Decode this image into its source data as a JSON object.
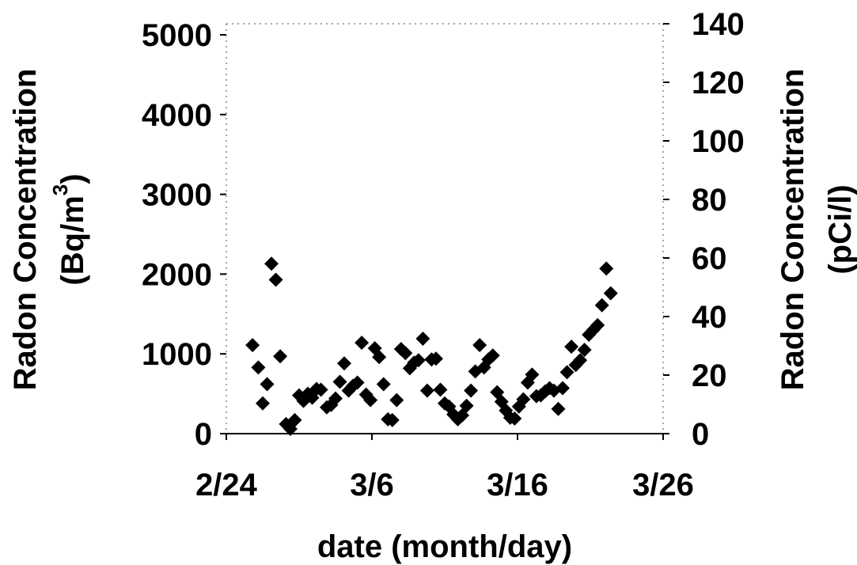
{
  "chart_data": {
    "type": "scatter",
    "marker": "diamond",
    "color": "#000000",
    "xlabel": "date (month/day)",
    "ylabel_left": {
      "line1": "Radon Concentration",
      "line2_main": "(Bq/m",
      "line2_sup": "3",
      "line2_end": ")"
    },
    "ylabel_right": {
      "line1": "Radon Concentration",
      "line2": "(pCi/l)"
    },
    "x_ticks": [
      {
        "day": 0,
        "label": "2/24"
      },
      {
        "day": 10,
        "label": "3/6"
      },
      {
        "day": 20,
        "label": "3/16"
      },
      {
        "day": 30,
        "label": "3/26"
      }
    ],
    "xlim_days": [
      0,
      30
    ],
    "ylim_left": [
      0,
      5000
    ],
    "ylim_right": [
      0,
      140
    ],
    "y_ticks_left": [
      0,
      1000,
      2000,
      3000,
      4000,
      5000
    ],
    "y_ticks_right": [
      0,
      20,
      40,
      60,
      80,
      100,
      120,
      140
    ],
    "grid": false,
    "points_day_bq": [
      [
        1.8,
        1110
      ],
      [
        2.2,
        830
      ],
      [
        2.5,
        380
      ],
      [
        2.8,
        620
      ],
      [
        3.1,
        2130
      ],
      [
        3.4,
        1930
      ],
      [
        3.7,
        970
      ],
      [
        4.1,
        120
      ],
      [
        4.4,
        60
      ],
      [
        4.7,
        170
      ],
      [
        5.0,
        480
      ],
      [
        5.3,
        410
      ],
      [
        5.6,
        500
      ],
      [
        5.9,
        450
      ],
      [
        6.2,
        560
      ],
      [
        6.5,
        550
      ],
      [
        6.9,
        330
      ],
      [
        7.2,
        360
      ],
      [
        7.5,
        440
      ],
      [
        7.8,
        650
      ],
      [
        8.1,
        880
      ],
      [
        8.4,
        540
      ],
      [
        8.7,
        600
      ],
      [
        9.0,
        640
      ],
      [
        9.3,
        1140
      ],
      [
        9.6,
        490
      ],
      [
        9.9,
        420
      ],
      [
        10.2,
        1070
      ],
      [
        10.5,
        960
      ],
      [
        10.8,
        620
      ],
      [
        11.1,
        180
      ],
      [
        11.4,
        170
      ],
      [
        11.7,
        420
      ],
      [
        12.0,
        1060
      ],
      [
        12.3,
        1010
      ],
      [
        12.6,
        820
      ],
      [
        12.9,
        890
      ],
      [
        13.2,
        920
      ],
      [
        13.5,
        1190
      ],
      [
        13.8,
        540
      ],
      [
        14.1,
        930
      ],
      [
        14.4,
        940
      ],
      [
        14.7,
        550
      ],
      [
        15.0,
        380
      ],
      [
        15.3,
        340
      ],
      [
        15.6,
        240
      ],
      [
        15.9,
        180
      ],
      [
        16.2,
        230
      ],
      [
        16.5,
        350
      ],
      [
        16.8,
        540
      ],
      [
        17.1,
        780
      ],
      [
        17.4,
        1110
      ],
      [
        17.7,
        830
      ],
      [
        18.0,
        930
      ],
      [
        18.3,
        980
      ],
      [
        18.6,
        520
      ],
      [
        18.9,
        400
      ],
      [
        19.2,
        290
      ],
      [
        19.5,
        200
      ],
      [
        19.8,
        190
      ],
      [
        20.1,
        340
      ],
      [
        20.4,
        430
      ],
      [
        20.7,
        640
      ],
      [
        21.0,
        740
      ],
      [
        21.3,
        470
      ],
      [
        21.6,
        480
      ],
      [
        21.9,
        530
      ],
      [
        22.2,
        570
      ],
      [
        22.5,
        540
      ],
      [
        22.8,
        310
      ],
      [
        23.1,
        570
      ],
      [
        23.4,
        770
      ],
      [
        23.7,
        1090
      ],
      [
        24.0,
        860
      ],
      [
        24.3,
        920
      ],
      [
        24.6,
        1050
      ],
      [
        24.9,
        1240
      ],
      [
        25.2,
        1300
      ],
      [
        25.5,
        1360
      ],
      [
        25.8,
        1610
      ],
      [
        26.1,
        2070
      ],
      [
        26.4,
        1760
      ]
    ]
  }
}
